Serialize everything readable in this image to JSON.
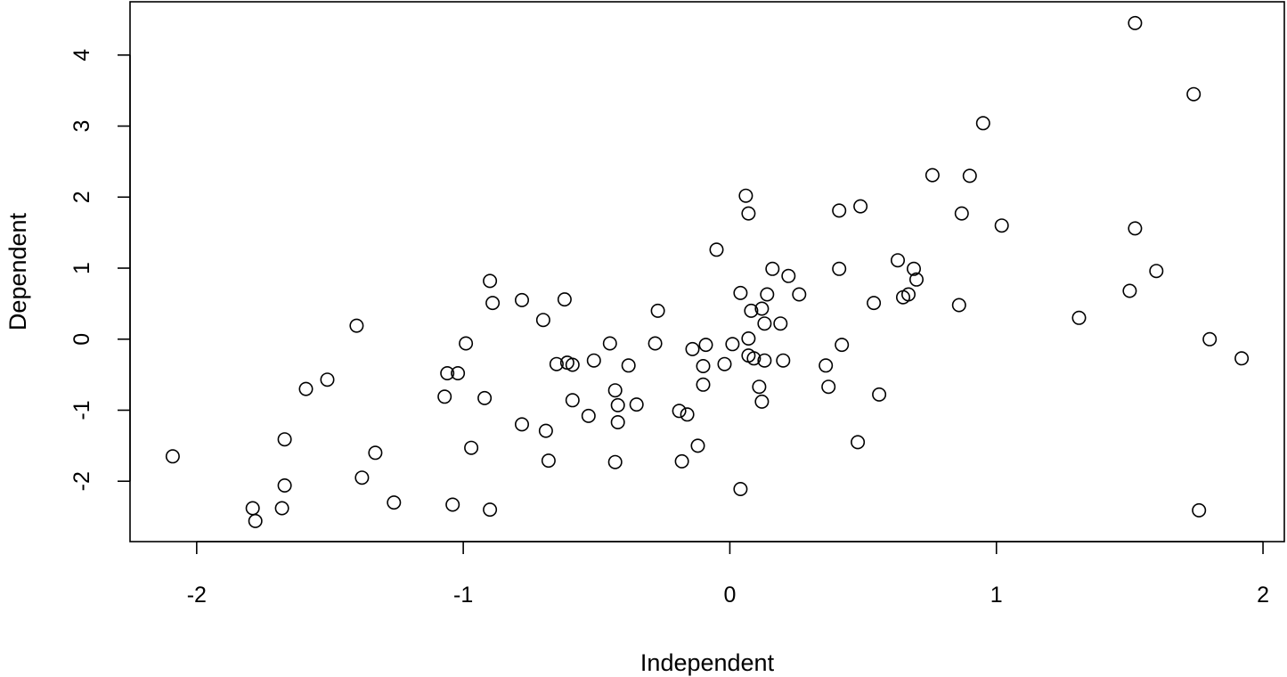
{
  "chart_data": {
    "type": "scatter",
    "title": "",
    "xlabel": "Independent",
    "ylabel": "Dependent",
    "xlim": [
      -2.25,
      2.08
    ],
    "ylim": [
      -2.85,
      4.75
    ],
    "xticks": [
      -2,
      -1,
      0,
      1,
      2
    ],
    "xtick_labels": [
      "-2",
      "-1",
      "0",
      "1",
      "2"
    ],
    "yticks": [
      -2,
      -1,
      0,
      1,
      2,
      3,
      4
    ],
    "ytick_labels": [
      "-2",
      "-1",
      "0",
      "1",
      "2",
      "3",
      "4"
    ],
    "grid": false,
    "legend": "none",
    "marker": "open-circle",
    "color": "#000000",
    "series": [
      {
        "x": [
          -2.09,
          -1.79,
          -1.78,
          -1.68,
          -1.67,
          -1.67,
          -1.59,
          -1.51,
          -1.4,
          -1.38,
          -1.33,
          -1.26,
          -1.07,
          -1.06,
          -1.04,
          -1.02,
          -0.99,
          -0.97,
          -0.92,
          -0.9,
          -0.9,
          -0.89,
          -0.78,
          -0.78,
          -0.7,
          -0.69,
          -0.68,
          -0.65,
          -0.62,
          -0.61,
          -0.59,
          -0.59,
          -0.53,
          -0.51,
          -0.45,
          -0.43,
          -0.43,
          -0.42,
          -0.42,
          -0.38,
          -0.35,
          -0.28,
          -0.27,
          -0.19,
          -0.18,
          -0.16,
          -0.14,
          -0.12,
          -0.1,
          -0.1,
          -0.09,
          -0.05,
          -0.02,
          0.01,
          0.04,
          0.04,
          0.06,
          0.07,
          0.07,
          0.07,
          0.08,
          0.09,
          0.11,
          0.12,
          0.12,
          0.13,
          0.13,
          0.14,
          0.16,
          0.19,
          0.2,
          0.22,
          0.26,
          0.36,
          0.37,
          0.41,
          0.41,
          0.42,
          0.48,
          0.49,
          0.54,
          0.56,
          0.63,
          0.65,
          0.67,
          0.69,
          0.7,
          0.76,
          0.86,
          0.87,
          0.9,
          0.95,
          1.02,
          1.31,
          1.5,
          1.52,
          1.52,
          1.6,
          1.74,
          1.76,
          1.8,
          1.92
        ],
        "y": [
          -1.65,
          -2.38,
          -2.56,
          -2.38,
          -1.41,
          -2.06,
          -0.7,
          -0.57,
          0.19,
          -1.95,
          -1.6,
          -2.3,
          -0.81,
          -0.48,
          -2.33,
          -0.48,
          -0.06,
          -1.53,
          -0.83,
          0.82,
          -2.4,
          0.51,
          0.55,
          -1.2,
          0.27,
          -1.29,
          -1.71,
          -0.35,
          0.56,
          -0.33,
          -0.36,
          -0.86,
          -1.08,
          -0.3,
          -0.06,
          -0.72,
          -1.73,
          -0.93,
          -1.17,
          -0.37,
          -0.92,
          -0.06,
          0.4,
          -1.01,
          -1.72,
          -1.06,
          -0.14,
          -1.5,
          -0.38,
          -0.64,
          -0.08,
          1.26,
          -0.35,
          -0.07,
          0.65,
          -2.11,
          2.02,
          1.77,
          -0.23,
          0.01,
          0.4,
          -0.27,
          -0.67,
          0.43,
          -0.88,
          0.22,
          -0.3,
          0.63,
          0.99,
          0.22,
          -0.3,
          0.89,
          0.63,
          -0.37,
          -0.67,
          0.99,
          1.81,
          -0.08,
          -1.45,
          1.87,
          0.51,
          -0.78,
          1.11,
          0.59,
          0.63,
          0.99,
          0.84,
          2.31,
          0.48,
          1.77,
          2.3,
          3.04,
          1.6,
          0.3,
          0.68,
          4.45,
          1.56,
          0.96,
          3.45,
          -2.41,
          0.0,
          -0.27
        ]
      }
    ]
  }
}
